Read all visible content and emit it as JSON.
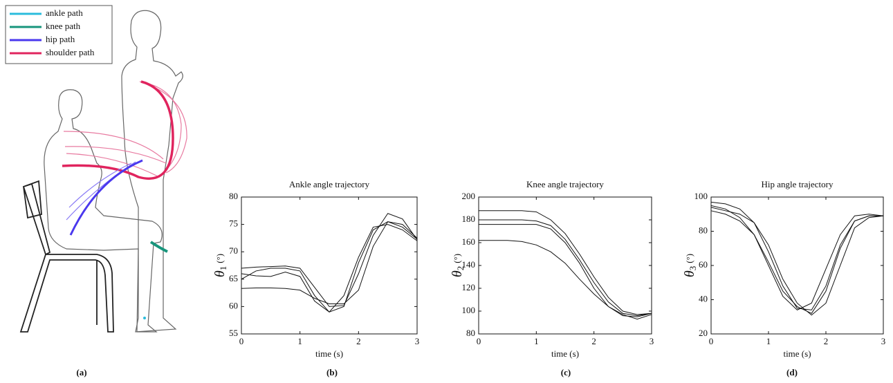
{
  "panel_a": {
    "legend": [
      {
        "name": "ankle path",
        "color": "#2bbcdc"
      },
      {
        "name": "knee path",
        "color": "#17957c"
      },
      {
        "name": "hip path",
        "color": "#4a38ee"
      },
      {
        "name": "shoulder path",
        "color": "#e0245e"
      }
    ]
  },
  "panel_labels": [
    "(a)",
    "(b)",
    "(c)",
    "(d)"
  ],
  "chart_data": [
    {
      "type": "line",
      "title": "Ankle angle trajectory",
      "xlabel": "time (s)",
      "ylabel": {
        "symbol": "θ",
        "subscript": "1",
        "unit": "(°)"
      },
      "x": [
        0,
        0.25,
        0.5,
        0.75,
        1,
        1.25,
        1.5,
        1.75,
        2,
        2.25,
        2.5,
        2.75,
        3
      ],
      "xlim": [
        0,
        3
      ],
      "xticks": [
        0,
        1,
        2,
        3
      ],
      "ylim": [
        55,
        80
      ],
      "yticks": [
        55,
        60,
        65,
        70,
        75,
        80
      ],
      "series": [
        {
          "color": "#111111",
          "values": [
            67,
            67.2,
            67.3,
            67.4,
            67,
            63.5,
            60,
            60.2,
            66,
            73,
            77,
            76,
            72.2
          ]
        },
        {
          "color": "#111111",
          "values": [
            66,
            65.6,
            65.5,
            66.3,
            65.5,
            61,
            59,
            62,
            69,
            74.5,
            75,
            74,
            72
          ]
        },
        {
          "color": "#111111",
          "values": [
            63.3,
            63.4,
            63.4,
            63.3,
            63,
            61.5,
            60.5,
            60.5,
            63,
            71,
            75.5,
            75,
            72.5
          ]
        },
        {
          "color": "#111111",
          "values": [
            65,
            66.5,
            67,
            67,
            66.5,
            62,
            59,
            60,
            68,
            74,
            75.5,
            74.5,
            72.3
          ]
        }
      ]
    },
    {
      "type": "line",
      "title": "Knee angle trajectory",
      "xlabel": "time (s)",
      "ylabel": {
        "symbol": "θ",
        "subscript": "2",
        "unit": "(°)"
      },
      "x": [
        0,
        0.25,
        0.5,
        0.75,
        1,
        1.25,
        1.5,
        1.75,
        2,
        2.25,
        2.5,
        2.75,
        3
      ],
      "xlim": [
        0,
        3
      ],
      "xticks": [
        0,
        1,
        2,
        3
      ],
      "ylim": [
        80,
        200
      ],
      "yticks": [
        80,
        100,
        120,
        140,
        160,
        180,
        200
      ],
      "series": [
        {
          "color": "#111111",
          "values": [
            188,
            188,
            188,
            188,
            187,
            180,
            168,
            150,
            130,
            112,
            100,
            97,
            98
          ]
        },
        {
          "color": "#111111",
          "values": [
            180,
            180,
            180,
            180,
            179,
            175,
            163,
            145,
            125,
            108,
            98,
            96,
            98
          ]
        },
        {
          "color": "#111111",
          "values": [
            176,
            176,
            176,
            176,
            176,
            172,
            160,
            142,
            120,
            104,
            96,
            95,
            98
          ]
        },
        {
          "color": "#111111",
          "values": [
            162,
            162,
            162,
            161,
            158,
            152,
            142,
            128,
            115,
            104,
            97,
            93,
            97
          ]
        }
      ]
    },
    {
      "type": "line",
      "title": "Hip angle trajectory",
      "xlabel": "time (s)",
      "ylabel": {
        "symbol": "θ",
        "subscript": "3",
        "unit": "(°)"
      },
      "x": [
        0,
        0.25,
        0.5,
        0.75,
        1,
        1.25,
        1.5,
        1.75,
        2,
        2.25,
        2.5,
        2.75,
        3
      ],
      "xlim": [
        0,
        3
      ],
      "xticks": [
        0,
        1,
        2,
        3
      ],
      "ylim": [
        20,
        100
      ],
      "yticks": [
        20,
        40,
        60,
        80,
        100
      ],
      "series": [
        {
          "color": "#111111",
          "values": [
            97,
            96,
            93,
            85,
            68,
            48,
            35,
            34,
            48,
            72,
            86,
            89,
            89
          ]
        },
        {
          "color": "#111111",
          "values": [
            92,
            90,
            86,
            78,
            60,
            42,
            34,
            38,
            58,
            78,
            89,
            90,
            89
          ]
        },
        {
          "color": "#111111",
          "values": [
            95,
            93,
            88,
            78,
            62,
            45,
            36,
            32,
            45,
            70,
            86,
            89,
            89
          ]
        },
        {
          "color": "#111111",
          "values": [
            94,
            92,
            90,
            85,
            72,
            52,
            38,
            31,
            38,
            60,
            82,
            88,
            89
          ]
        }
      ]
    }
  ]
}
